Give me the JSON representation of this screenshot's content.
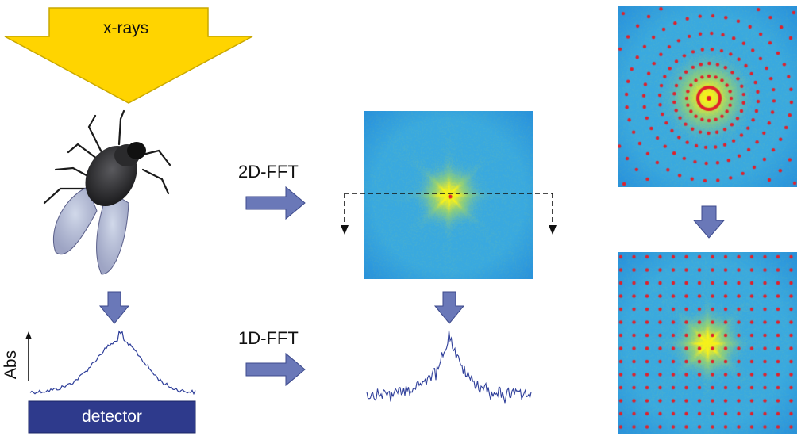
{
  "beam_label": "x-rays",
  "detector_label": "detector",
  "y_axis_label": "Abs",
  "fft2d_label": "2D-FFT",
  "fft1d_label": "1D-FFT",
  "colors": {
    "beam_arrow": "#ffd400",
    "beam_arrow_stroke": "#c9a800",
    "flow_arrow": "#6a78b8",
    "flow_arrow_stroke": "#3d4a8c",
    "detector_fill": "#2e3a8c",
    "detector_text": "#ffffff",
    "spectrum_line": "#2f3f9a",
    "lattice_dot": "#e0202a",
    "map_background": "#39a9e0",
    "map_center": "#f7f21a"
  },
  "icons": {
    "specimen": "housefly-icon",
    "flow": "block-arrow-icon"
  }
}
